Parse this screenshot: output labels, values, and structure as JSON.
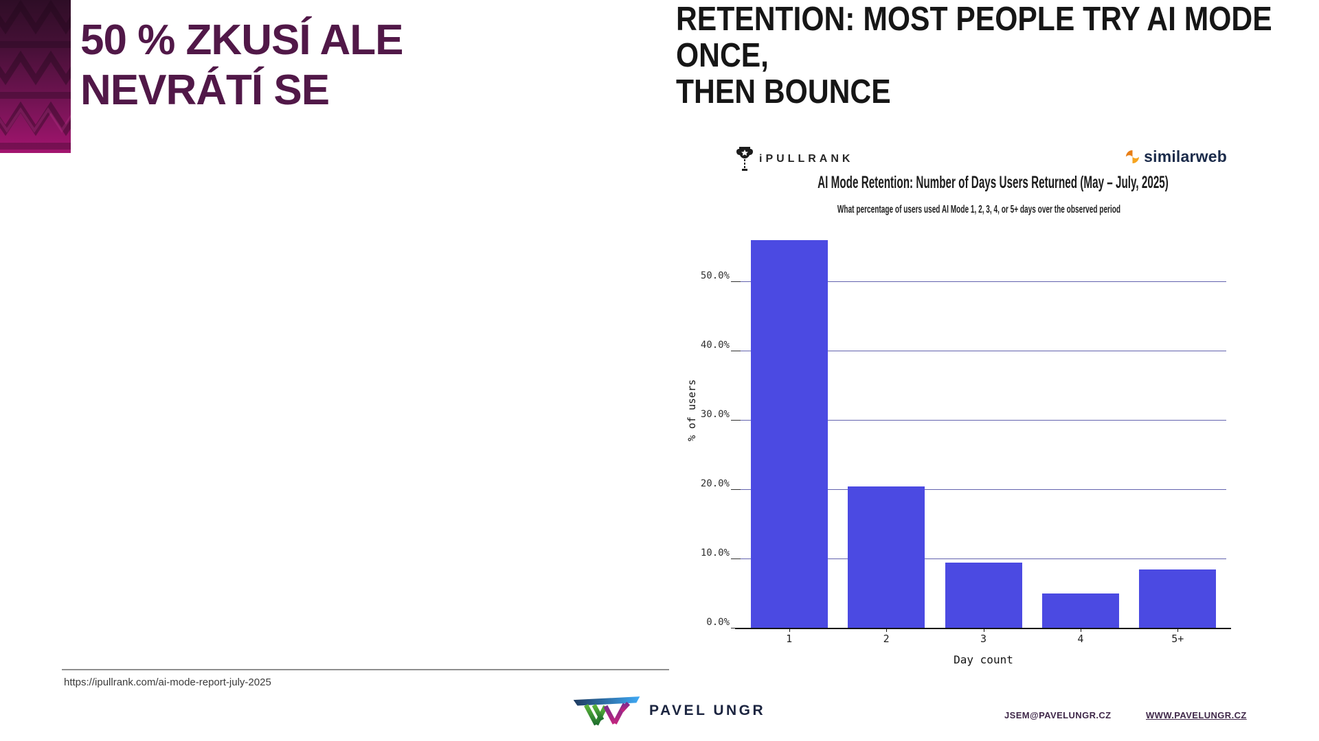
{
  "slide": {
    "left_heading": {
      "line1": "50 % ZKUSÍ ALE",
      "line2": "NEVRÁTÍ SE"
    },
    "right_heading": {
      "line1": "RETENTION: MOST PEOPLE TRY AI MODE ONCE,",
      "line2": "THEN BOUNCE"
    }
  },
  "chart_header": {
    "ipullrank_label": "iPULLRANK",
    "similarweb_label": "similarweb"
  },
  "chart_data": {
    "type": "bar",
    "title": "AI Mode Retention: Number of Days Users Returned (May – July, 2025)",
    "subtitle": "What percentage of users used AI Mode 1, 2, 3, 4, or 5+ days over the observed period",
    "categories": [
      "1",
      "2",
      "3",
      "4",
      "5+"
    ],
    "values": [
      56.0,
      20.5,
      9.5,
      5.0,
      8.5
    ],
    "xlabel": "Day count",
    "ylabel": "% of users",
    "ylim": [
      0,
      56.5
    ],
    "yticks": [
      0,
      10,
      20,
      30,
      40,
      50
    ],
    "ytick_labels": [
      "0.0%",
      "10.0%",
      "20.0%",
      "30.0%",
      "40.0%",
      "50.0%"
    ],
    "grid": true,
    "legend": "none",
    "bar_color": "#4b4ae2"
  },
  "footer": {
    "source_url": "https://ipullrank.com/ai-mode-report-july-2025",
    "brand_name": "PAVEL UNGR",
    "email": "JSEM@PAVELUNGR.CZ",
    "website": "WWW.PAVELUNGR.CZ"
  },
  "colors": {
    "left_heading": "#511848",
    "right_heading": "#161616",
    "bar": "#4b4ae2",
    "gridline": "#4646a0",
    "strip_magenta": "#a3156f",
    "footer_link": "#3f2849",
    "similarweb_navy": "#1b2b4a",
    "similarweb_orange": "#f08c1e"
  }
}
